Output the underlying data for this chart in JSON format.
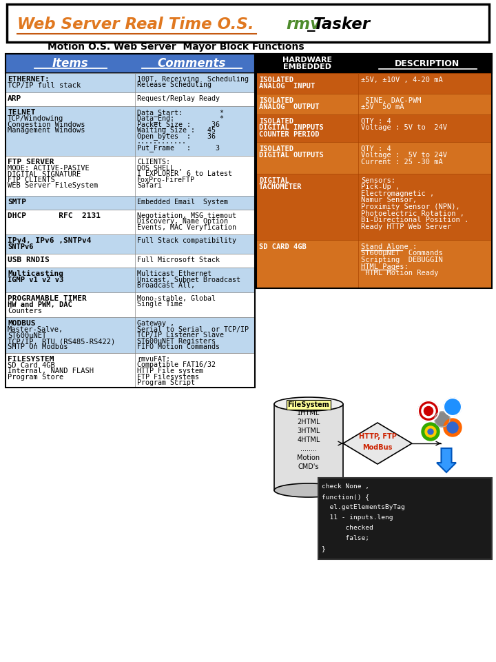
{
  "title1": "Web Server Real Time O.S.",
  "title2": "rmv",
  "title3": "_",
  "title4": "Tasker",
  "subtitle": "Motion O.S. Web Server  Mayor Block Functions",
  "col_items": "Items",
  "col_comments": "Comments",
  "hw_header": "HARDWARE\nEMBEDDED",
  "desc_header": "DESCRIPTION",
  "left_rows": [
    {
      "item": [
        "ETHERNET:",
        "TCP/IP full stack"
      ],
      "item_bold": [
        true,
        false
      ],
      "comment": [
        "100T, Receiving  Scheduling",
        "Release Scheduling"
      ]
    },
    {
      "item": [
        "ARP"
      ],
      "item_bold": [
        true
      ],
      "comment": [
        "Request/Replay Ready"
      ]
    },
    {
      "item": [
        "TELNET",
        "TCP/Windowing",
        "Congestion Windows",
        "Management Windows"
      ],
      "item_bold": [
        true,
        false,
        false,
        false
      ],
      "comment": [
        "Data_Start:         *",
        "Data_End:           *",
        "Packet_Size :     36",
        "Waiting_Size :   45",
        "Open_bytes  :    36",
        "............",
        "Put_Frame   :      3"
      ]
    },
    {
      "item": [
        "FTP SERVER",
        "MODE: ACTIVE-PASIVE",
        "DIGITAL SIGNATURE",
        "FTP CLIENTS",
        "WEB Server FileSystem"
      ],
      "item_bold": [
        true,
        false,
        false,
        false,
        false
      ],
      "comment": [
        "CLIENTS:",
        "DOS SHELL ,",
        "I EXPLORER  6 to Latest",
        "FoxPro-FireFTP",
        "Safari"
      ]
    },
    {
      "item": [
        "SMTP"
      ],
      "item_bold": [
        true
      ],
      "comment": [
        "Embedded Email  System"
      ]
    },
    {
      "item": [
        "DHCP       RFC  2131"
      ],
      "item_bold": [
        true
      ],
      "comment": [
        "Negotiation, MSG tiemout",
        "Discovery, Name Option",
        "Events, MAC Veryfication"
      ]
    },
    {
      "item": [
        "IPv4, IPv6 ,SNTPv4",
        "SNTPv6"
      ],
      "item_bold": [
        true,
        true
      ],
      "comment": [
        "Full Stack compatibility"
      ]
    },
    {
      "item": [
        "USB RNDIS"
      ],
      "item_bold": [
        true
      ],
      "comment": [
        "Full Microsoft Stack"
      ]
    },
    {
      "item": [
        "Multicasting",
        "IGMP v1 v2 v3"
      ],
      "item_bold": [
        true,
        true
      ],
      "comment": [
        "Multicast Ethernet",
        "Unicast, Subnet Broadcast",
        "Broadcast All,"
      ]
    },
    {
      "item": [
        "PROGRAMABLE TIMER",
        "HW and PWM, DAC",
        "Counters"
      ],
      "item_bold": [
        true,
        true,
        false
      ],
      "comment": [
        "Mono-stable, Global",
        "Single Time"
      ]
    },
    {
      "item": [
        "MODBUS",
        "Master-Salve,",
        "ST600μNET",
        "TCP/IP, RTU (RS485-RS422)",
        "SMTP On Modbus"
      ],
      "item_bold": [
        true,
        false,
        false,
        false,
        false
      ],
      "comment": [
        "Gateway ,",
        "Serial to Serial  or TCP/IP",
        "TCP/IP Listener Slave",
        "ST600μNET Registers",
        "FIFO Motion Commands"
      ]
    },
    {
      "item": [
        "FILESYSTEM",
        "SD Card 4GB",
        "Internal, NAND FLASH",
        "Program Store"
      ],
      "item_bold": [
        true,
        false,
        false,
        false
      ],
      "comment": [
        "rmvuFAT:",
        "Compatible FAT16/32",
        "HTTP File system",
        "FTP Filesystems",
        "Program Script"
      ]
    }
  ],
  "left_row_heights": [
    28,
    20,
    72,
    58,
    20,
    36,
    28,
    20,
    36,
    36,
    52,
    50
  ],
  "right_rows": [
    {
      "hw": [
        "ISOLATED",
        "ANALOG  INPUT"
      ],
      "desc": [
        "±5V, ±10V , 4-20 mA"
      ],
      "underline_desc": []
    },
    {
      "hw": [
        "ISOLATED",
        "ANALOG  OUTPUT"
      ],
      "desc": [
        " SINE, DAC-PWM",
        "±5V  50 mA"
      ],
      "underline_desc": []
    },
    {
      "hw": [
        "ISOLATED",
        "DIGITAL INPPUTS",
        "COUNTER PERIOD"
      ],
      "desc": [
        "QTY : 4",
        "Voltage : 5V to  24V"
      ],
      "underline_desc": []
    },
    {
      "hw": [
        "ISOLATED",
        "DIGITAL OUTPUTS"
      ],
      "desc": [
        "QTY : 4",
        "Voltage :  5V to 24V",
        "Current : 25 -30 mA"
      ],
      "underline_desc": []
    },
    {
      "hw": [
        "DIGITAL",
        "TACHOMETER"
      ],
      "desc": [
        "Sensors:",
        "Pick-Up ,",
        "Electromagnetic ,",
        "Namur Sensor,",
        "Proximity Sensor (NPN),",
        "Photoelectric Rotation ,",
        "Bi-Directional Position .",
        "Ready HTTP Web Server"
      ],
      "underline_desc": []
    },
    {
      "hw": [
        "SD CARD 4GB"
      ],
      "desc": [
        "Stand Alone :",
        "ST600μNET  Commands",
        "Scripting  DEBUGGIN",
        "HTML Pages:",
        " HTML Motion Ready"
      ],
      "underline_desc": [
        0,
        3
      ]
    }
  ],
  "right_row_heights": [
    30,
    30,
    40,
    46,
    96,
    70
  ],
  "colors": {
    "header_blue": "#4472C4",
    "row_alt": "#BDD7EE",
    "row_white": "#FFFFFF",
    "orange1": "#C55A11",
    "orange2": "#D4711F",
    "black": "#000000",
    "white": "#FFFFFF"
  },
  "fs_items": [
    "1HTML",
    "2HTML",
    "3HTML",
    "4HTML",
    "........",
    "Motion",
    "CMD's"
  ],
  "code_lines": [
    "check None ,",
    "function() {",
    "  el.getElementsByTag",
    "  11 - inputs.leng",
    "      checked",
    "      false;",
    "}"
  ]
}
